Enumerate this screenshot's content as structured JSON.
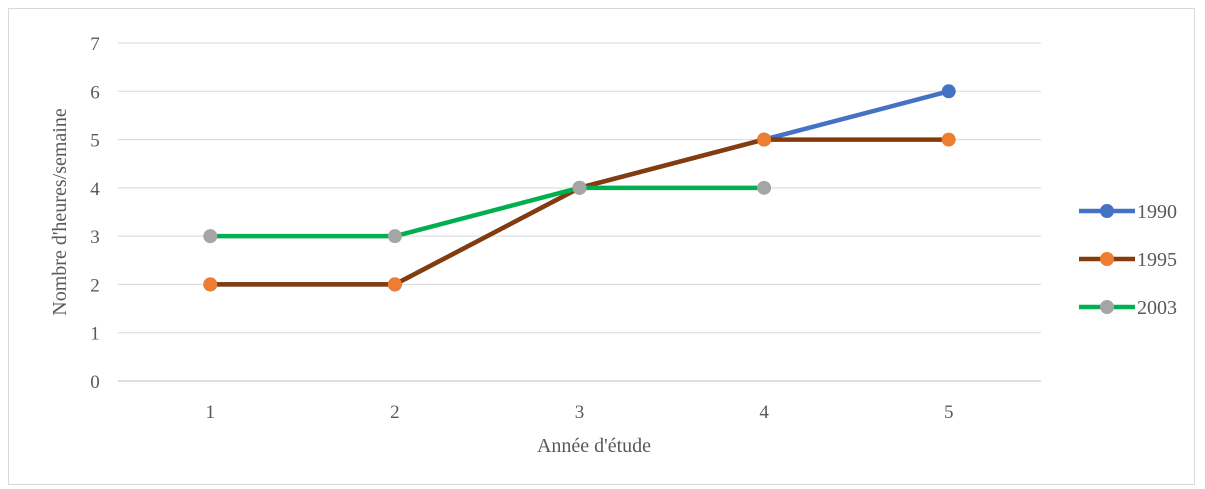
{
  "chart_data": {
    "type": "line",
    "title": "",
    "xlabel": "Année d'étude",
    "ylabel": "Nombre d'heures/semaine",
    "x": [
      1,
      2,
      3,
      4,
      5
    ],
    "x_tick_labels": [
      "1",
      "2",
      "3",
      "4",
      "5"
    ],
    "y_tick_labels": [
      "0",
      "1",
      "2",
      "3",
      "4",
      "5",
      "6",
      "7"
    ],
    "ylim": [
      0,
      7
    ],
    "grid": true,
    "legend_position": "right",
    "series": [
      {
        "name": "1990",
        "color": "#4472c4",
        "values": [
          2,
          2,
          4,
          5,
          6
        ]
      },
      {
        "name": "1995",
        "color": "#ed7d31",
        "line_color": "#843c0c",
        "values": [
          2,
          2,
          4,
          5,
          5
        ]
      },
      {
        "name": "2003",
        "color": "#a5a5a5",
        "line_color": "#00b050",
        "values": [
          3,
          3,
          4,
          4,
          null
        ]
      }
    ]
  }
}
